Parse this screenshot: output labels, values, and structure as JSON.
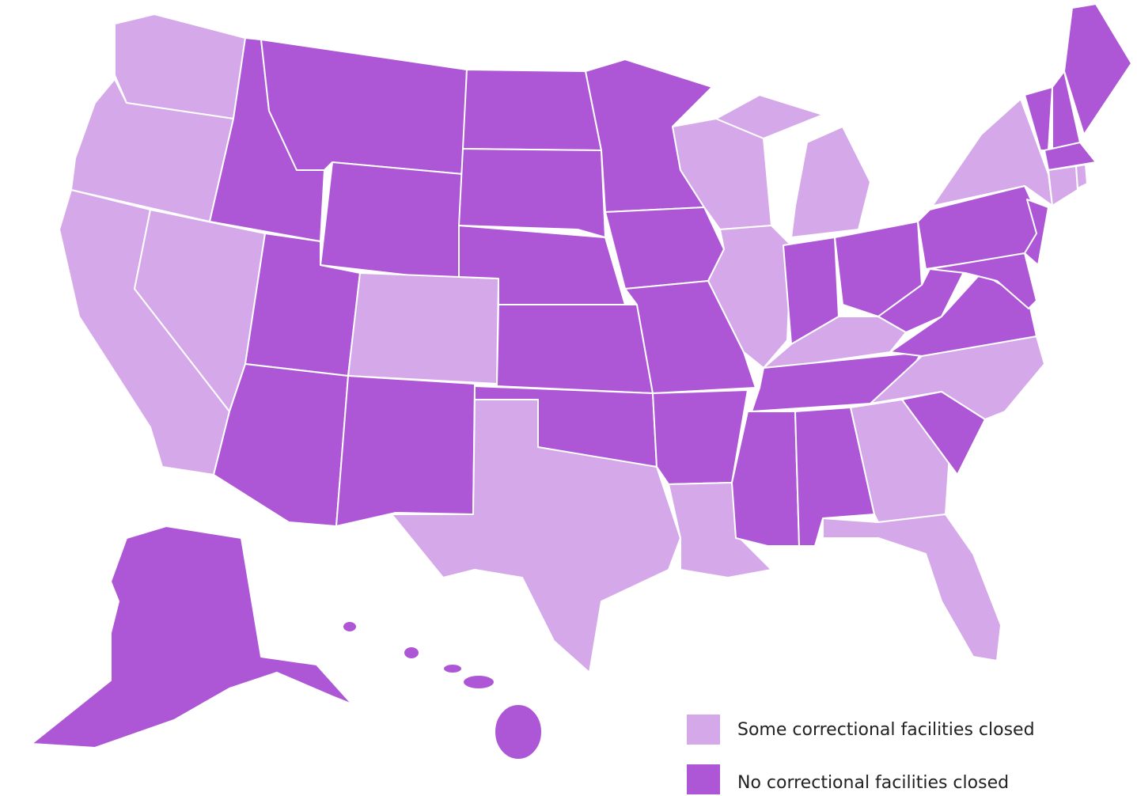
{
  "legend": [
    {
      "label": "Some correctional facilities closed",
      "color": "#d5a9e9"
    },
    {
      "label": "No correctional facilities closed",
      "color": "#ad57d6"
    }
  ]
}
